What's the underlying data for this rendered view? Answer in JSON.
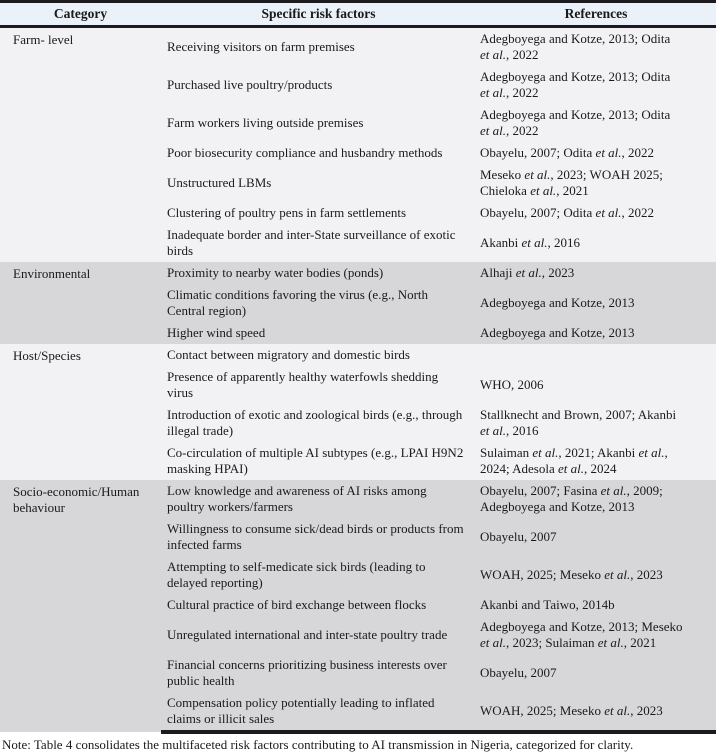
{
  "typography": {
    "italic_phrase": "et al."
  },
  "colors": {
    "header_bg": "#eaf1f9",
    "section_light_bg": "#f2f2f4",
    "section_gray_bg": "#d7d7d9",
    "rule_color": "#1b1b1f",
    "text_color": "#1a1a1a"
  },
  "table": {
    "columns": [
      "Category",
      "Specific risk factors",
      "References"
    ],
    "sections": [
      {
        "category": "Farm- level",
        "shade": "light",
        "rows": [
          {
            "risk": "Receiving visitors on farm premises",
            "refs": "Adegboyega and Kotze, 2013; Odita\net al., 2022"
          },
          {
            "risk": "Purchased live poultry/products",
            "refs": "Adegboyega and Kotze, 2013; Odita\net al., 2022"
          },
          {
            "risk": "Farm workers living outside premises",
            "refs": "Adegboyega and Kotze, 2013; Odita\net al., 2022"
          },
          {
            "risk": "Poor biosecurity compliance and husbandry methods",
            "refs": "Obayelu, 2007; Odita et al., 2022"
          },
          {
            "risk": "Unstructured LBMs",
            "refs": "Meseko et al., 2023; WOAH 2025;\nChieloka et al., 2021"
          },
          {
            "risk": "Clustering of poultry pens in farm settlements",
            "refs": "Obayelu, 2007; Odita et al., 2022"
          },
          {
            "risk": "Inadequate border and inter-State surveillance of exotic\nbirds",
            "refs": "Akanbi et al., 2016"
          }
        ]
      },
      {
        "category": "Environmental",
        "shade": "gray",
        "rows": [
          {
            "risk": "Proximity to nearby water bodies (ponds)",
            "refs": "Alhaji et al., 2023"
          },
          {
            "risk": "Climatic conditions favoring the virus (e.g., North\nCentral region)",
            "refs": "Adegboyega and Kotze, 2013"
          },
          {
            "risk": "Higher wind speed",
            "refs": "Adegboyega and Kotze, 2013"
          }
        ]
      },
      {
        "category": "Host/Species",
        "shade": "light",
        "rows": [
          {
            "risk": "Contact between migratory and domestic birds",
            "refs": ""
          },
          {
            "risk": "Presence of apparently healthy waterfowls shedding\nvirus",
            "refs": "WHO, 2006"
          },
          {
            "risk": "Introduction of exotic and zoological birds (e.g., through\nillegal trade)",
            "refs": "Stallknecht and Brown, 2007; Akanbi\net al., 2016"
          },
          {
            "risk": "Co-circulation of multiple AI subtypes (e.g., LPAI H9N2\nmasking HPAI)",
            "refs": "Sulaiman et al., 2021; Akanbi et al.,\n2024; Adesola et al., 2024"
          }
        ]
      },
      {
        "category": "Socio-economic/Human\nbehaviour",
        "shade": "gray",
        "rows": [
          {
            "risk": "Low knowledge and awareness of AI risks among\npoultry workers/farmers",
            "refs": "Obayelu, 2007; Fasina et al., 2009;\nAdegboyega and Kotze, 2013"
          },
          {
            "risk": "Willingness to consume sick/dead birds or products from\ninfected farms",
            "refs": "Obayelu, 2007"
          },
          {
            "risk": "Attempting to self-medicate sick birds (leading to\ndelayed reporting)",
            "refs": "WOAH, 2025; Meseko et al., 2023"
          },
          {
            "risk": "Cultural practice of bird exchange between flocks",
            "refs": "Akanbi and Taiwo, 2014b"
          },
          {
            "risk": "Unregulated international and inter-state poultry trade",
            "refs": "Adegboyega and Kotze, 2013; Meseko\net al., 2023; Sulaiman et al., 2021"
          },
          {
            "risk": "Financial concerns prioritizing business interests over\npublic health",
            "refs": "Obayelu, 2007"
          },
          {
            "risk": "Compensation policy potentially leading to inflated\nclaims or illicit sales",
            "refs": "WOAH, 2025; Meseko et al., 2023"
          }
        ]
      }
    ]
  },
  "note": "Note: Table 4 consolidates the multifaceted risk factors contributing to AI transmission in Nigeria, categorized for clarity."
}
